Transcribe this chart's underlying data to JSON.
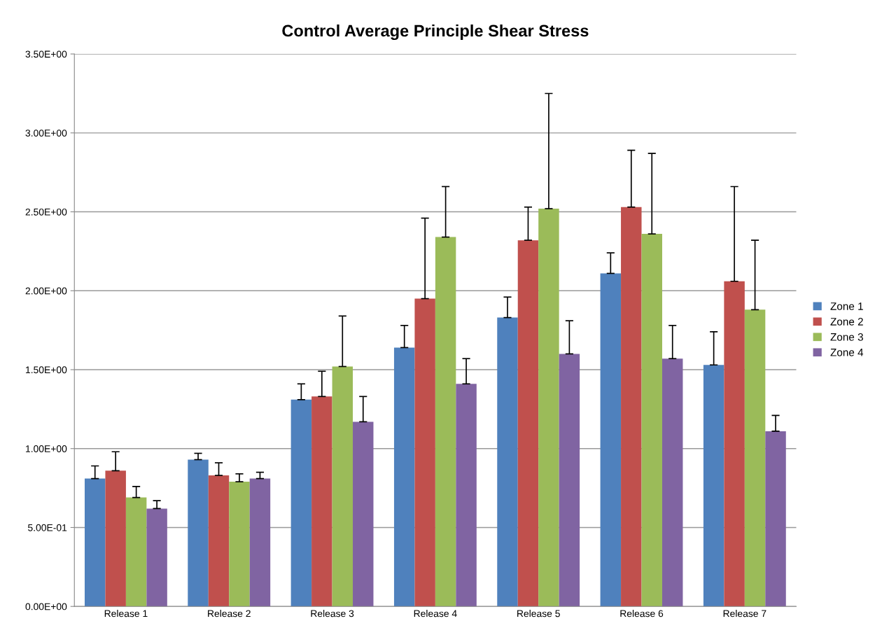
{
  "chart_data": {
    "type": "bar",
    "title": "Control Average Principle Shear Stress",
    "categories": [
      "Release 1",
      "Release 2",
      "Release 3",
      "Release 4",
      "Release 5",
      "Release 6",
      "Release 7"
    ],
    "series": [
      {
        "name": "Zone 1",
        "color": "#4f81bd",
        "values": [
          0.81,
          0.93,
          1.31,
          1.64,
          1.83,
          2.11,
          1.53
        ],
        "errors": [
          [
            0.81,
            0.89
          ],
          [
            0.93,
            0.97
          ],
          [
            1.31,
            1.41
          ],
          [
            1.64,
            1.78
          ],
          [
            1.83,
            1.96
          ],
          [
            2.11,
            2.24
          ],
          [
            1.53,
            1.74
          ]
        ]
      },
      {
        "name": "Zone 2",
        "color": "#c0504d",
        "values": [
          0.86,
          0.83,
          1.33,
          1.95,
          2.32,
          2.53,
          2.06
        ],
        "errors": [
          [
            0.86,
            0.98
          ],
          [
            0.83,
            0.91
          ],
          [
            1.33,
            1.49
          ],
          [
            1.95,
            2.46
          ],
          [
            2.32,
            2.53
          ],
          [
            2.53,
            2.89
          ],
          [
            2.06,
            2.66
          ]
        ]
      },
      {
        "name": "Zone 3",
        "color": "#9bbb59",
        "values": [
          0.69,
          0.79,
          1.52,
          2.34,
          2.52,
          2.36,
          1.88
        ],
        "errors": [
          [
            0.69,
            0.76
          ],
          [
            0.79,
            0.84
          ],
          [
            1.52,
            1.84
          ],
          [
            2.34,
            2.66
          ],
          [
            2.52,
            3.25
          ],
          [
            2.36,
            2.87
          ],
          [
            1.88,
            2.32
          ]
        ]
      },
      {
        "name": "Zone 4",
        "color": "#8064a2",
        "values": [
          0.62,
          0.81,
          1.17,
          1.41,
          1.6,
          1.57,
          1.11
        ],
        "errors": [
          [
            0.62,
            0.67
          ],
          [
            0.81,
            0.85
          ],
          [
            1.17,
            1.33
          ],
          [
            1.41,
            1.57
          ],
          [
            1.6,
            1.81
          ],
          [
            1.57,
            1.78
          ],
          [
            1.11,
            1.21
          ]
        ]
      }
    ],
    "ylim": [
      0,
      3.5
    ],
    "yticks": [
      {
        "value": 0,
        "label": "0.00E+00"
      },
      {
        "value": 0.5,
        "label": "5.00E-01"
      },
      {
        "value": 1,
        "label": "1.00E+00"
      },
      {
        "value": 1.5,
        "label": "1.50E+00"
      },
      {
        "value": 2,
        "label": "2.00E+00"
      },
      {
        "value": 2.5,
        "label": "2.50E+00"
      },
      {
        "value": 3,
        "label": "3.00E+00"
      },
      {
        "value": 3.5,
        "label": "3.50E+00"
      }
    ],
    "grid": "y",
    "legend": "right"
  }
}
